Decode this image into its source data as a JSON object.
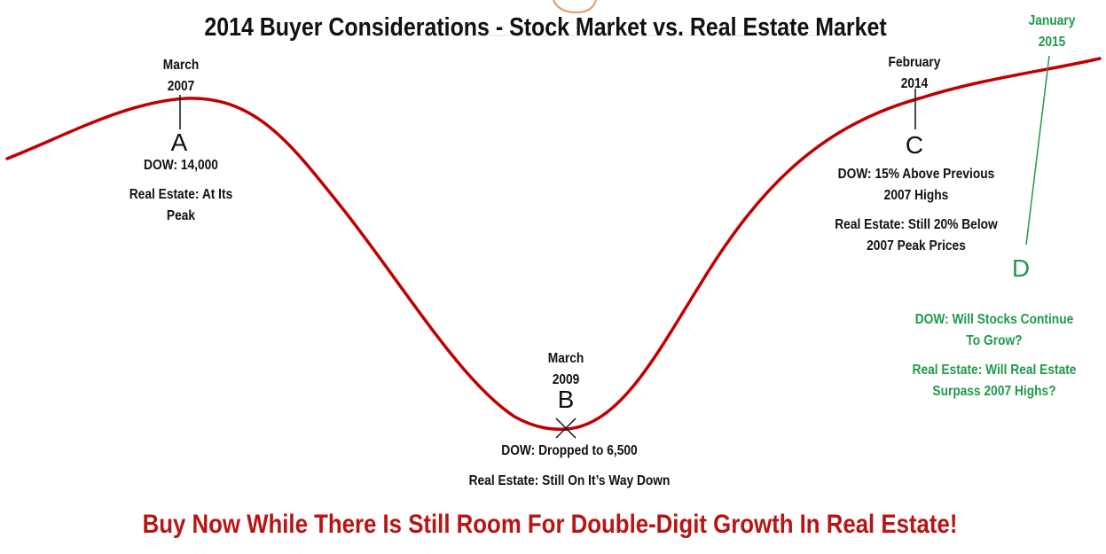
{
  "title": "2014 Buyer Considerations - Stock Market vs. Real Estate Market",
  "points": {
    "A": {
      "letter": "A",
      "date_month": "March",
      "date_year": "2007",
      "dow": "DOW: 14,000",
      "real_estate_line1": "Real Estate: At Its",
      "real_estate_line2": "Peak"
    },
    "B": {
      "letter": "B",
      "date_month": "March",
      "date_year": "2009",
      "dow": "DOW: Dropped to 6,500",
      "real_estate": "Real Estate: Still On It’s Way Down"
    },
    "C": {
      "letter": "C",
      "date_month": "February",
      "date_year": "2014",
      "dow_line1": "DOW: 15% Above Previous",
      "dow_line2": "2007 Highs",
      "real_estate_line1": "Real Estate: Still 20% Below",
      "real_estate_line2": "2007 Peak Prices"
    },
    "D": {
      "letter": "D",
      "date_month": "January",
      "date_year": "2015",
      "dow_line1": "DOW: Will Stocks Continue",
      "dow_line2": "To Grow?",
      "real_estate_line1": "Real Estate: Will Real Estate",
      "real_estate_line2": "Surpass 2007 Highs?"
    }
  },
  "footer": "Buy Now While There Is Still Room For Double-Digit Growth In Real Estate!",
  "colors": {
    "curve": "#c00000",
    "text": "#111111",
    "future": "#1f9a4a",
    "footer": "#b81414"
  }
}
